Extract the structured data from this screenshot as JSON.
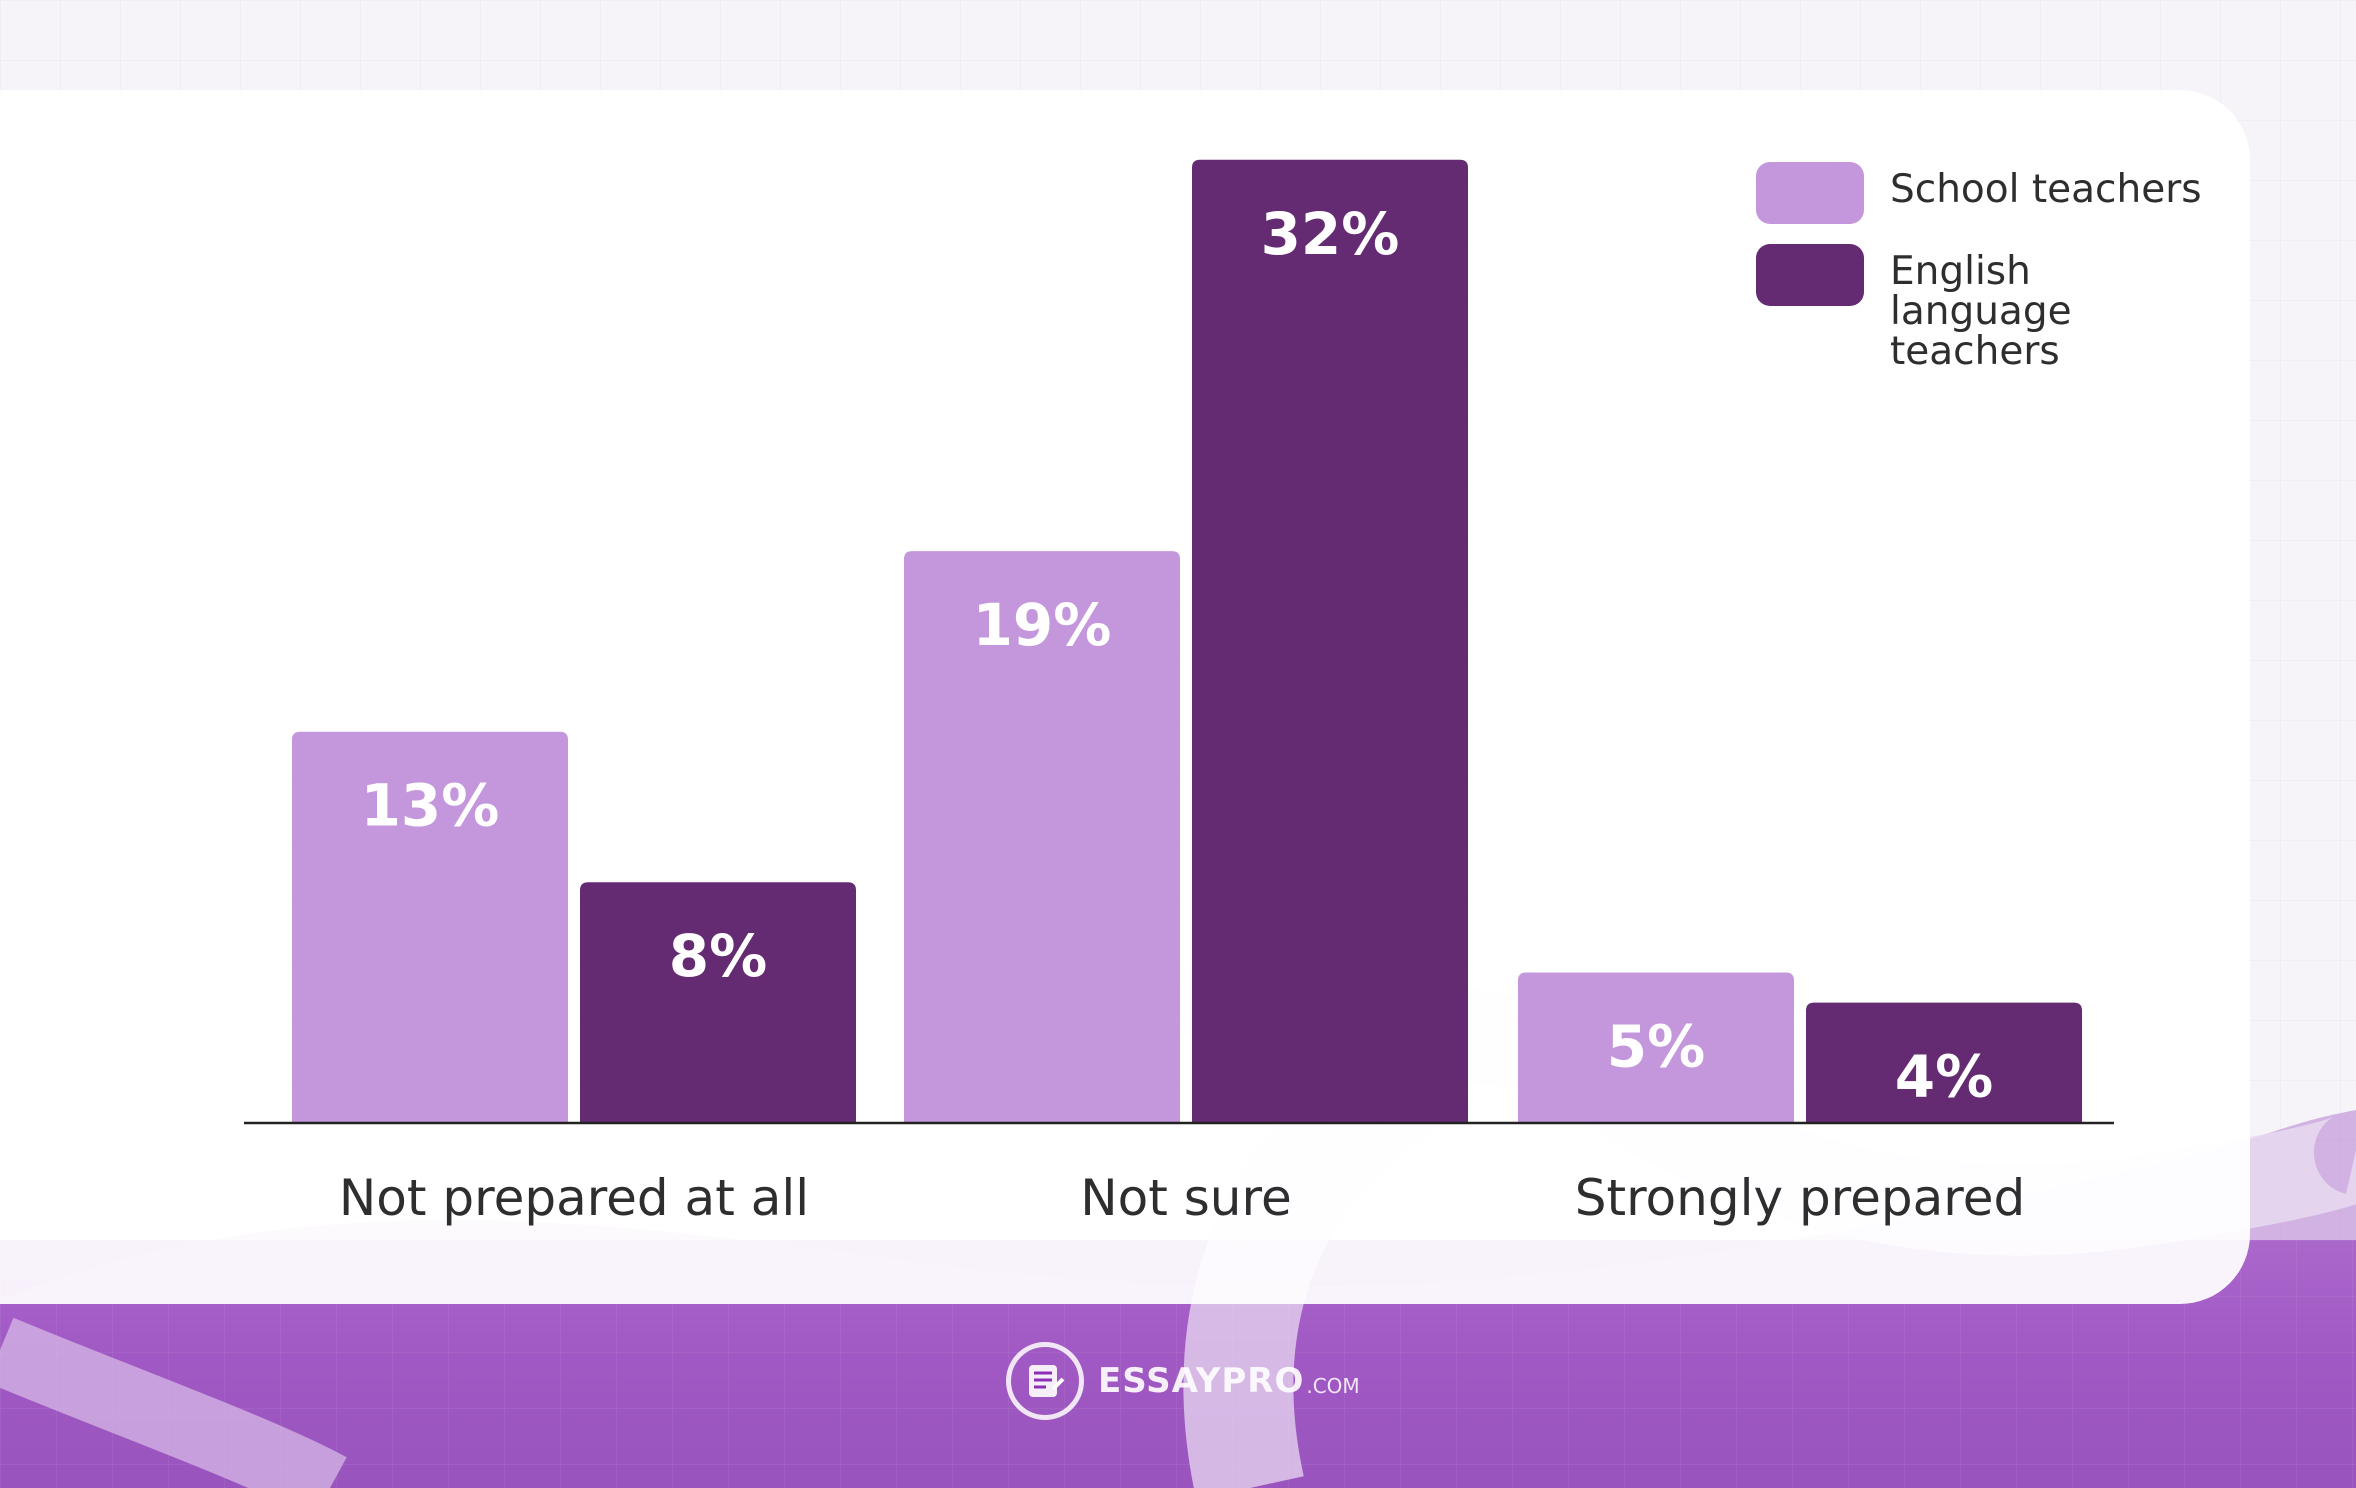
{
  "chart_data": {
    "type": "bar",
    "categories": [
      "Not prepared at all",
      "Not sure",
      "Strongly prepared"
    ],
    "series": [
      {
        "name": "School teachers",
        "values": [
          13,
          19,
          5
        ],
        "color": "#c497dd"
      },
      {
        "name": "English language teachers",
        "values": [
          8,
          32,
          4
        ],
        "color": "#642b72"
      }
    ],
    "value_suffix": "%",
    "title": "",
    "xlabel": "",
    "ylabel": "",
    "ylim": [
      0,
      34
    ],
    "grid": false,
    "legend": "top-right"
  },
  "brand": {
    "name": "ESSAYPRO",
    "suffix": ".COM",
    "icon": "essay-document-icon"
  },
  "colors": {
    "band": "#8c2fb6",
    "text": "#2e2e2e"
  }
}
